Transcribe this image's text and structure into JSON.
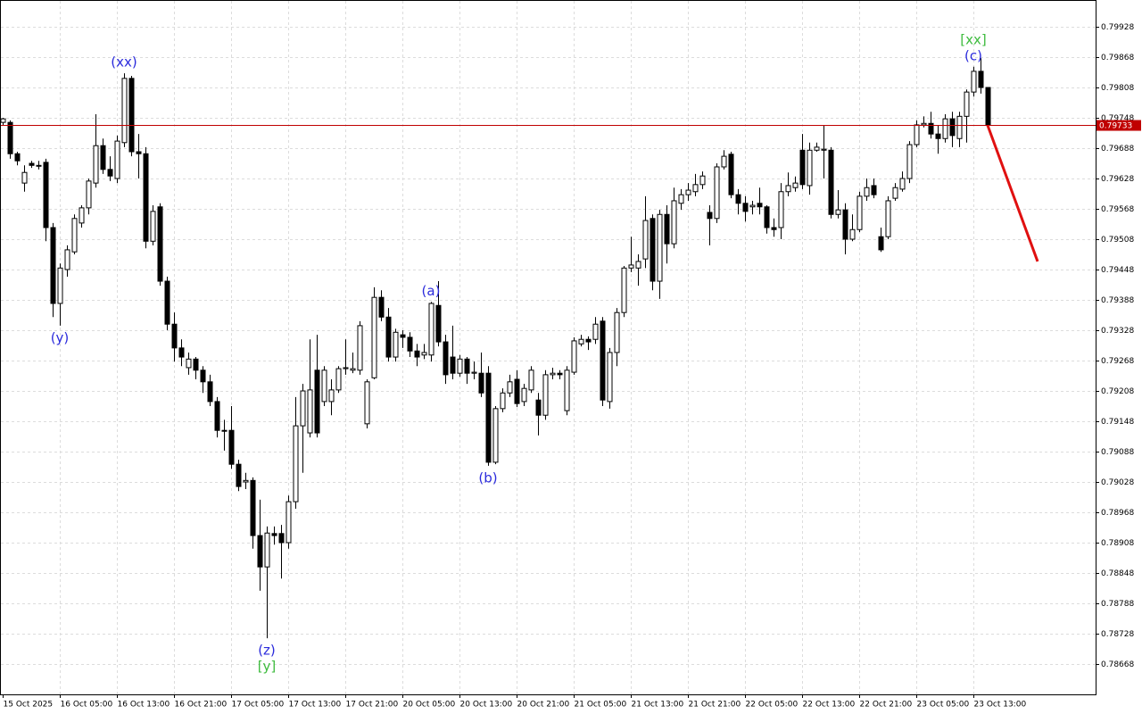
{
  "chart_data": {
    "type": "candlestick",
    "categories": [
      "15 Oct 2025",
      null,
      null,
      null,
      null,
      null,
      null,
      null,
      "16 Oct 05:00",
      null,
      null,
      null,
      null,
      null,
      null,
      null,
      "16 Oct 13:00",
      null,
      null,
      null,
      null,
      null,
      null,
      null,
      "16 Oct 21:00",
      null,
      null,
      null,
      null,
      null,
      null,
      null,
      "17 Oct 05:00",
      null,
      null,
      null,
      null,
      null,
      null,
      null,
      "17 Oct 13:00",
      null,
      null,
      null,
      null,
      null,
      null,
      null,
      "17 Oct 21:00",
      null,
      null,
      null,
      null,
      null,
      null,
      null,
      "20 Oct 05:00",
      null,
      null,
      null,
      null,
      null,
      null,
      null,
      "20 Oct 13:00",
      null,
      null,
      null,
      null,
      null,
      null,
      null,
      "20 Oct 21:00",
      null,
      null,
      null,
      null,
      null,
      null,
      null,
      "21 Oct 05:00",
      null,
      null,
      null,
      null,
      null,
      null,
      null,
      "21 Oct 13:00",
      null,
      null,
      null,
      null,
      null,
      null,
      null,
      "21 Oct 21:00",
      null,
      null,
      null,
      null,
      null,
      null,
      null,
      "22 Oct 05:00",
      null,
      null,
      null,
      null,
      null,
      null,
      null,
      "22 Oct 13:00",
      null,
      null,
      null,
      null,
      null,
      null,
      null,
      "22 Oct 21:00",
      null,
      null,
      null,
      null,
      null,
      null,
      null,
      "23 Oct 05:00",
      null,
      null,
      null,
      null,
      null,
      null,
      null,
      "23 Oct 13:00",
      null,
      null
    ],
    "open": [
      0.79739,
      0.79739,
      0.79677,
      0.79619,
      0.79658,
      0.79654,
      0.7966,
      0.79531,
      0.79381,
      0.79448,
      0.79483,
      0.7954,
      0.7957,
      0.79619,
      0.79693,
      0.79646,
      0.79628,
      0.79699,
      0.79826,
      0.79681,
      0.79677,
      0.79504,
      0.79572,
      0.79425,
      0.7934,
      0.79293,
      0.79254,
      0.79271,
      0.79249,
      0.79226,
      0.79187,
      0.7913,
      0.7913,
      0.79063,
      0.79028,
      0.79031,
      0.78922,
      0.7886,
      0.78926,
      0.78926,
      0.78908,
      0.78989,
      0.79139,
      0.79125,
      0.79249,
      0.79187,
      0.79187,
      0.7921,
      0.79252,
      0.79249,
      0.79249,
      0.79143,
      0.79234,
      0.79393,
      0.79354,
      0.79275,
      0.79319,
      0.79314,
      0.79287,
      0.79279,
      0.79279,
      0.79377,
      0.79305,
      0.79275,
      0.79243,
      0.79271,
      0.79243,
      0.79243,
      0.79243,
      0.79067,
      0.79173,
      0.79204,
      0.79231,
      0.79187,
      0.7921,
      0.7919,
      0.7916,
      0.7924,
      0.79243,
      0.79169,
      0.79245,
      0.79301,
      0.7931,
      0.7931,
      0.79346,
      0.79187,
      0.79284,
      0.79363,
      0.79451,
      0.79451,
      0.79469,
      0.79549,
      0.79425,
      0.79557,
      0.79499,
      0.79579,
      0.79596,
      0.79602,
      0.79616,
      0.79561,
      0.79549,
      0.79651,
      0.79676,
      0.79596,
      0.79579,
      0.79572,
      0.79579,
      0.79572,
      0.79531,
      0.79531,
      0.79602,
      0.7961,
      0.79684,
      0.79614,
      0.79684,
      0.79684,
      0.79684,
      0.79557,
      0.79566,
      0.79508,
      0.79527,
      0.79593,
      0.79614,
      0.79513,
      0.79513,
      0.79589,
      0.79607,
      0.79628,
      0.79695,
      0.79734,
      0.79737,
      0.79716,
      0.79707,
      0.79746,
      0.79707,
      0.79751,
      0.79799,
      0.7984,
      0.79808
    ],
    "high": [
      0.79748,
      0.79743,
      0.79681,
      0.79654,
      0.79663,
      0.79663,
      0.79667,
      0.7954,
      0.7946,
      0.79496,
      0.79557,
      0.79575,
      0.79628,
      0.79755,
      0.79707,
      0.79672,
      0.79713,
      0.79836,
      0.79831,
      0.79716,
      0.7969,
      0.79575,
      0.79579,
      0.79434,
      0.79363,
      0.7931,
      0.79284,
      0.79275,
      0.79257,
      0.7924,
      0.79196,
      0.79151,
      0.79178,
      0.79072,
      0.79046,
      0.79037,
      0.78993,
      0.7894,
      0.7894,
      0.78943,
      0.79001,
      0.79196,
      0.79222,
      0.7931,
      0.79319,
      0.79257,
      0.79231,
      0.79257,
      0.7931,
      0.79284,
      0.79346,
      0.79231,
      0.79413,
      0.79407,
      0.79372,
      0.79331,
      0.79328,
      0.79324,
      0.79301,
      0.79301,
      0.79384,
      0.79425,
      0.79319,
      0.79337,
      0.79279,
      0.79275,
      0.79266,
      0.79284,
      0.79257,
      0.79178,
      0.79213,
      0.7924,
      0.79249,
      0.79222,
      0.79257,
      0.79204,
      0.79249,
      0.79254,
      0.79249,
      0.79257,
      0.79314,
      0.79319,
      0.79316,
      0.79354,
      0.79354,
      0.79293,
      0.79372,
      0.79455,
      0.79513,
      0.79478,
      0.79593,
      0.79557,
      0.79566,
      0.79575,
      0.7961,
      0.79607,
      0.79619,
      0.79637,
      0.79642,
      0.79575,
      0.79658,
      0.79684,
      0.79681,
      0.79607,
      0.79593,
      0.79584,
      0.7961,
      0.79575,
      0.79549,
      0.79619,
      0.7964,
      0.79632,
      0.79716,
      0.79699,
      0.79699,
      0.79734,
      0.7969,
      0.79605,
      0.79579,
      0.79557,
      0.79602,
      0.79628,
      0.79628,
      0.79531,
      0.79593,
      0.79619,
      0.79642,
      0.79702,
      0.79743,
      0.79751,
      0.7976,
      0.79734,
      0.79755,
      0.7976,
      0.7976,
      0.79804,
      0.79849,
      0.79866,
      0.79808
    ],
    "low": [
      0.79734,
      0.79667,
      0.79654,
      0.79602,
      0.79649,
      0.79646,
      0.79504,
      0.79354,
      0.79337,
      0.79434,
      0.79478,
      0.79531,
      0.79557,
      0.7961,
      0.79637,
      0.79623,
      0.79619,
      0.7969,
      0.79672,
      0.79628,
      0.7949,
      0.79496,
      0.79416,
      0.79328,
      0.79266,
      0.79257,
      0.7924,
      0.79231,
      0.79204,
      0.79178,
      0.79116,
      0.7909,
      0.79054,
      0.7901,
      0.79014,
      0.78896,
      0.78813,
      0.78719,
      0.78904,
      0.78837,
      0.78896,
      0.78975,
      0.79046,
      0.79116,
      0.79116,
      0.79178,
      0.7916,
      0.79204,
      0.7924,
      0.79243,
      0.7924,
      0.79134,
      0.79231,
      0.79346,
      0.79266,
      0.79266,
      0.79293,
      0.79275,
      0.79257,
      0.79271,
      0.79266,
      0.79296,
      0.79222,
      0.79231,
      0.79236,
      0.79222,
      0.79231,
      0.79196,
      0.7906,
      0.79063,
      0.79166,
      0.79196,
      0.79176,
      0.79178,
      0.79204,
      0.7912,
      0.79151,
      0.79231,
      0.79231,
      0.7916,
      0.7924,
      0.79296,
      0.79289,
      0.79301,
      0.79178,
      0.79173,
      0.79257,
      0.79354,
      0.79443,
      0.79416,
      0.79451,
      0.79407,
      0.7939,
      0.7946,
      0.7949,
      0.79566,
      0.79584,
      0.79593,
      0.79607,
      0.79496,
      0.7954,
      0.79646,
      0.79589,
      0.79557,
      0.79543,
      0.79557,
      0.79557,
      0.79519,
      0.79513,
      0.79508,
      0.79593,
      0.79602,
      0.79607,
      0.79596,
      0.79681,
      0.79628,
      0.79549,
      0.79549,
      0.79478,
      0.79504,
      0.79522,
      0.79584,
      0.79589,
      0.79483,
      0.79508,
      0.79584,
      0.79602,
      0.79619,
      0.7969,
      0.79729,
      0.79707,
      0.79677,
      0.79699,
      0.7969,
      0.7969,
      0.79699,
      0.7979,
      0.79796,
      0.79733
    ],
    "close": [
      0.79746,
      0.79677,
      0.79663,
      0.7964,
      0.79654,
      0.79653,
      0.79531,
      0.79381,
      0.79451,
      0.79487,
      0.79549,
      0.7957,
      0.79623,
      0.79693,
      0.79646,
      0.79633,
      0.79702,
      0.79826,
      0.79681,
      0.79677,
      0.79504,
      0.79563,
      0.79425,
      0.7934,
      0.79293,
      0.79275,
      0.79271,
      0.79249,
      0.79226,
      0.79187,
      0.7913,
      0.79129,
      0.79063,
      0.79019,
      0.79031,
      0.78922,
      0.7886,
      0.78927,
      0.78922,
      0.78908,
      0.78989,
      0.79139,
      0.79208,
      0.7921,
      0.79125,
      0.79249,
      0.7921,
      0.79252,
      0.79254,
      0.79252,
      0.79337,
      0.79226,
      0.79393,
      0.79354,
      0.79275,
      0.79324,
      0.79314,
      0.79287,
      0.79275,
      0.79284,
      0.79381,
      0.79305,
      0.7924,
      0.79243,
      0.79271,
      0.79243,
      0.79245,
      0.79204,
      0.79067,
      0.79173,
      0.79204,
      0.79226,
      0.79183,
      0.79213,
      0.79249,
      0.7916,
      0.7924,
      0.79243,
      0.7924,
      0.79249,
      0.79307,
      0.7931,
      0.79305,
      0.7934,
      0.7919,
      0.79284,
      0.79363,
      0.79451,
      0.79457,
      0.79464,
      0.79545,
      0.79425,
      0.79557,
      0.79499,
      0.79584,
      0.79596,
      0.79605,
      0.79616,
      0.79633,
      0.79549,
      0.79651,
      0.79672,
      0.79596,
      0.79579,
      0.79563,
      0.79575,
      0.79572,
      0.79531,
      0.79527,
      0.79602,
      0.79614,
      0.79619,
      0.79616,
      0.79684,
      0.7969,
      0.79686,
      0.79557,
      0.79566,
      0.79508,
      0.79527,
      0.79593,
      0.7961,
      0.79596,
      0.79487,
      0.79584,
      0.7961,
      0.79628,
      0.79695,
      0.79734,
      0.79737,
      0.79716,
      0.79707,
      0.79746,
      0.79713,
      0.79751,
      0.79799,
      0.7984,
      0.79808,
      0.79733
    ],
    "up_color": "#ffffff",
    "down_color": "#000000",
    "wick_color": "#000000",
    "ylim": [
      0.78608,
      0.79981
    ],
    "yticks": [
      0.79928,
      0.79868,
      0.79808,
      0.79748,
      0.79688,
      0.79628,
      0.79568,
      0.79508,
      0.79448,
      0.79388,
      0.79328,
      0.79268,
      0.79208,
      0.79148,
      0.79088,
      0.79028,
      0.78968,
      0.78908,
      0.78848,
      0.78788,
      0.78728,
      0.78668
    ],
    "grid": true,
    "price_line": {
      "value": 0.79733,
      "color": "#c00000"
    },
    "projection": {
      "x": [
        138,
        145
      ],
      "values": [
        0.79733,
        0.79464
      ],
      "color": "#e01010"
    },
    "annotations": [
      {
        "text": "(xx)",
        "index": 17,
        "side": "above",
        "color": "#2b2bdc"
      },
      {
        "text": "(y)",
        "index": 8,
        "side": "below",
        "color": "#2b2bdc"
      },
      {
        "text": "(z)",
        "index": 37,
        "side": "below",
        "color": "#2b2bdc"
      },
      {
        "text": "[y]",
        "index": 37,
        "side": "below",
        "color": "#3dbb3d"
      },
      {
        "text": "(a)",
        "index": 60,
        "side": "above",
        "color": "#2b2bdc"
      },
      {
        "text": "(b)",
        "index": 68,
        "side": "below",
        "color": "#2b2bdc"
      },
      {
        "text": "(c)",
        "index": 136,
        "side": "above",
        "color": "#2b2bdc"
      },
      {
        "text": "[xx]",
        "index": 136,
        "side": "above",
        "color": "#3dbb3d"
      }
    ]
  }
}
